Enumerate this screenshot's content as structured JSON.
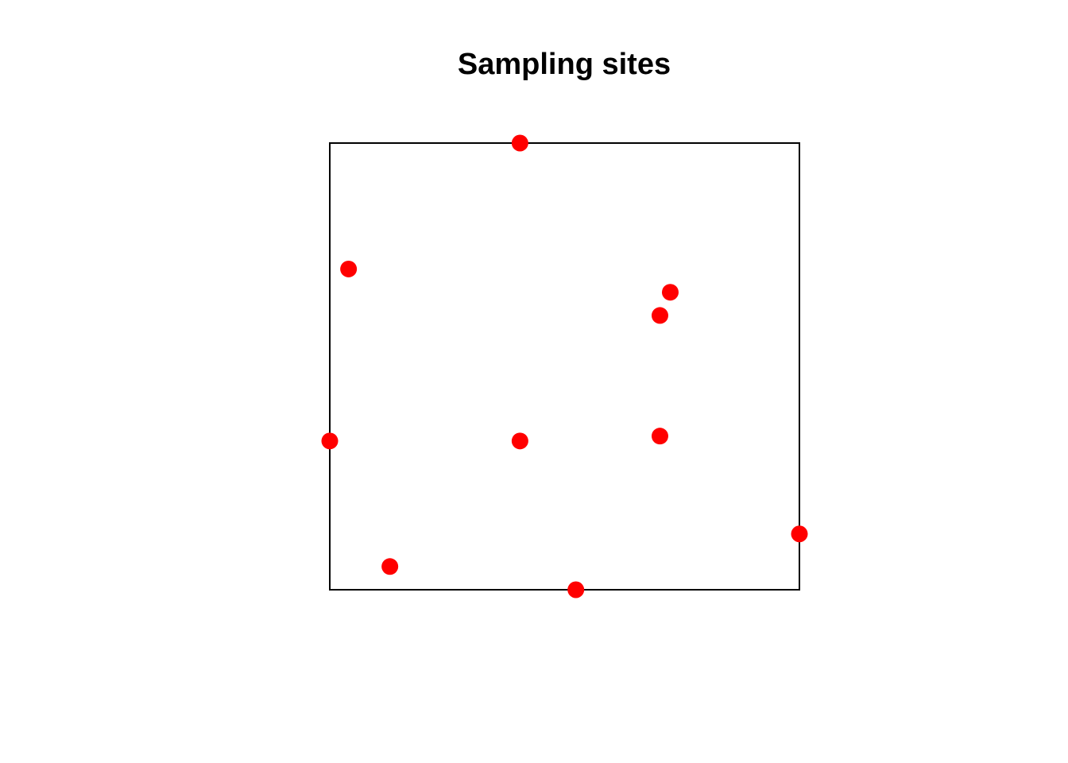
{
  "chart_data": {
    "type": "scatter",
    "title": "Sampling sites",
    "xlabel": "",
    "ylabel": "",
    "xlim": [
      0,
      1
    ],
    "ylim": [
      0,
      1
    ],
    "axes": false,
    "grid": false,
    "legend": "none",
    "window_frame": true,
    "point_color": "#ff0000",
    "frame_color": "#000000",
    "points": [
      {
        "x": 0.405,
        "y": 1.0
      },
      {
        "x": 0.04,
        "y": 0.718
      },
      {
        "x": 0.725,
        "y": 0.666
      },
      {
        "x": 0.703,
        "y": 0.614
      },
      {
        "x": 0.0,
        "y": 0.333
      },
      {
        "x": 0.405,
        "y": 0.333
      },
      {
        "x": 0.703,
        "y": 0.344
      },
      {
        "x": 1.0,
        "y": 0.125
      },
      {
        "x": 0.128,
        "y": 0.052
      },
      {
        "x": 0.524,
        "y": 0.0
      }
    ]
  }
}
